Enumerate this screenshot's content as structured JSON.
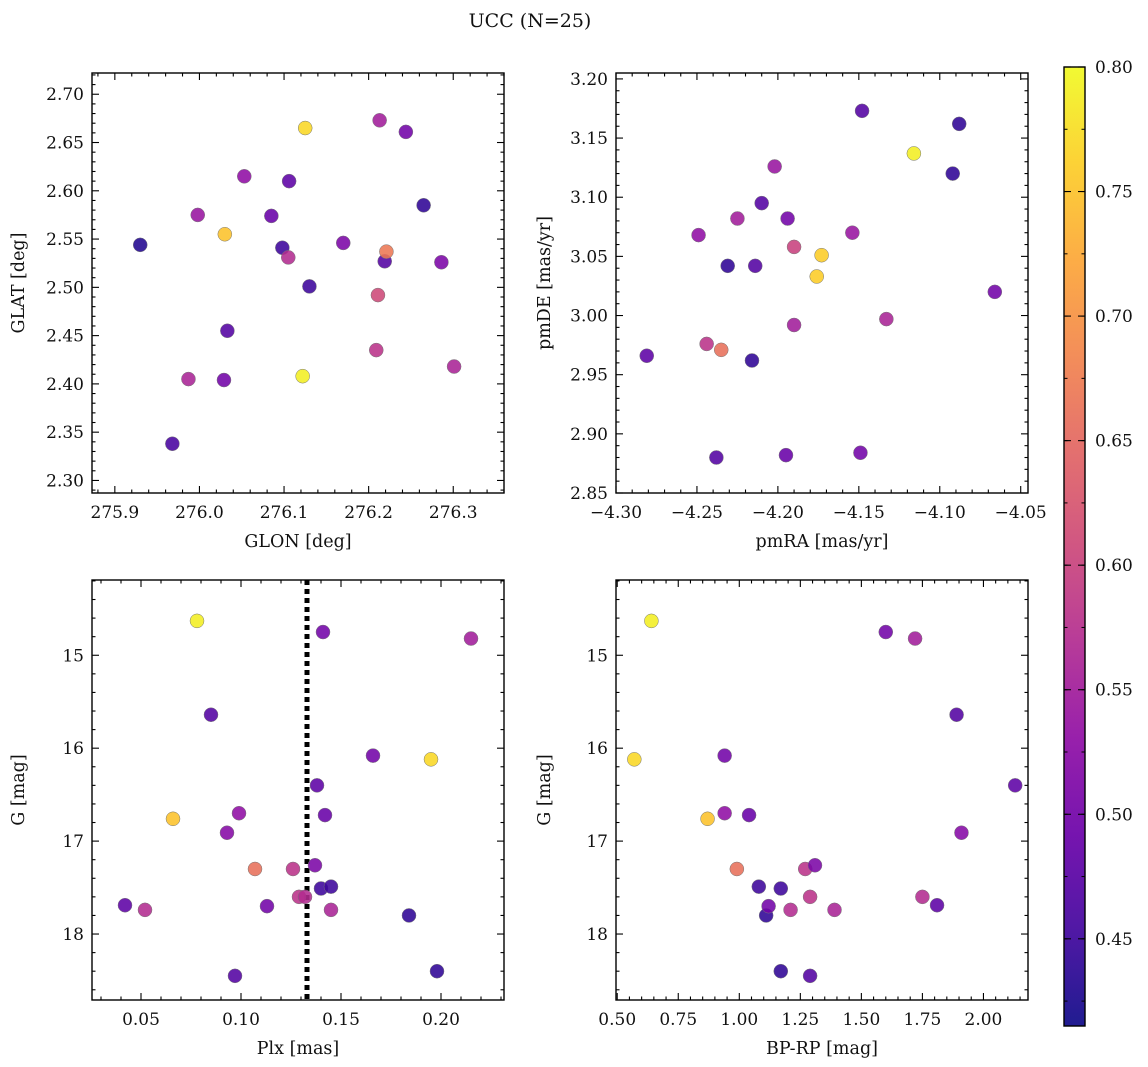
{
  "title": "UCC (N=25)",
  "colorbar": {
    "cmap": "plasma",
    "range": [
      0.415,
      0.8
    ],
    "ticks": [
      "0.45",
      "0.50",
      "0.55",
      "0.60",
      "0.65",
      "0.70",
      "0.75",
      "0.80"
    ],
    "tick_values": [
      0.45,
      0.5,
      0.55,
      0.6,
      0.65,
      0.7,
      0.75,
      0.8
    ]
  },
  "chart_data": [
    {
      "type": "scatter",
      "xlabel": "GLON [deg]",
      "ylabel": "GLAT [deg]",
      "xlim": [
        275.873,
        276.36
      ],
      "ylim": [
        2.287,
        2.722
      ],
      "y_inverted": false,
      "xticks": [
        275.9,
        276.0,
        276.1,
        276.2,
        276.3
      ],
      "xtick_labels": [
        "275.9",
        "276.0",
        "276.1",
        "276.2",
        "276.3"
      ],
      "yticks": [
        2.3,
        2.35,
        2.4,
        2.45,
        2.5,
        2.55,
        2.6,
        2.65,
        2.7
      ],
      "ytick_labels": [
        "2.30",
        "2.35",
        "2.40",
        "2.45",
        "2.50",
        "2.55",
        "2.60",
        "2.65",
        "2.70"
      ],
      "points": [
        {
          "x": 275.93,
          "y": 2.544,
          "c": 0.43
        },
        {
          "x": 275.968,
          "y": 2.338,
          "c": 0.46
        },
        {
          "x": 275.987,
          "y": 2.405,
          "c": 0.56
        },
        {
          "x": 275.998,
          "y": 2.575,
          "c": 0.54
        },
        {
          "x": 276.029,
          "y": 2.404,
          "c": 0.5
        },
        {
          "x": 276.03,
          "y": 2.555,
          "c": 0.75
        },
        {
          "x": 276.033,
          "y": 2.455,
          "c": 0.47
        },
        {
          "x": 276.053,
          "y": 2.615,
          "c": 0.53
        },
        {
          "x": 276.085,
          "y": 2.574,
          "c": 0.49
        },
        {
          "x": 276.098,
          "y": 2.541,
          "c": 0.45
        },
        {
          "x": 276.105,
          "y": 2.531,
          "c": 0.57
        },
        {
          "x": 276.106,
          "y": 2.61,
          "c": 0.48
        },
        {
          "x": 276.122,
          "y": 2.408,
          "c": 0.79
        },
        {
          "x": 276.125,
          "y": 2.665,
          "c": 0.77
        },
        {
          "x": 276.13,
          "y": 2.501,
          "c": 0.45
        },
        {
          "x": 276.17,
          "y": 2.546,
          "c": 0.51
        },
        {
          "x": 276.209,
          "y": 2.435,
          "c": 0.58
        },
        {
          "x": 276.211,
          "y": 2.492,
          "c": 0.61
        },
        {
          "x": 276.213,
          "y": 2.673,
          "c": 0.55
        },
        {
          "x": 276.219,
          "y": 2.527,
          "c": 0.47
        },
        {
          "x": 276.221,
          "y": 2.537,
          "c": 0.67
        },
        {
          "x": 276.244,
          "y": 2.661,
          "c": 0.5
        },
        {
          "x": 276.265,
          "y": 2.585,
          "c": 0.44
        },
        {
          "x": 276.286,
          "y": 2.526,
          "c": 0.51
        },
        {
          "x": 276.301,
          "y": 2.418,
          "c": 0.56
        }
      ]
    },
    {
      "type": "scatter",
      "xlabel": "pmRA [mas/yr]",
      "ylabel": "pmDE [mas/yr]",
      "xlim": [
        -4.3,
        -4.0455
      ],
      "ylim": [
        2.85,
        3.205
      ],
      "y_inverted": false,
      "xticks": [
        -4.3,
        -4.25,
        -4.2,
        -4.15,
        -4.1,
        -4.05
      ],
      "xtick_labels": [
        "−4.30",
        "−4.25",
        "−4.20",
        "−4.15",
        "−4.10",
        "−4.05"
      ],
      "yticks": [
        2.85,
        2.9,
        2.95,
        3.0,
        3.05,
        3.1,
        3.15,
        3.2
      ],
      "ytick_labels": [
        "2.85",
        "2.90",
        "2.95",
        "3.00",
        "3.05",
        "3.10",
        "3.15",
        "3.20"
      ],
      "points": [
        {
          "x": -4.281,
          "y": 2.966,
          "c": 0.48
        },
        {
          "x": -4.249,
          "y": 3.068,
          "c": 0.53
        },
        {
          "x": -4.244,
          "y": 2.976,
          "c": 0.58
        },
        {
          "x": -4.238,
          "y": 2.88,
          "c": 0.47
        },
        {
          "x": -4.235,
          "y": 2.971,
          "c": 0.66
        },
        {
          "x": -4.231,
          "y": 3.042,
          "c": 0.44
        },
        {
          "x": -4.225,
          "y": 3.082,
          "c": 0.55
        },
        {
          "x": -4.216,
          "y": 2.962,
          "c": 0.44
        },
        {
          "x": -4.214,
          "y": 3.042,
          "c": 0.47
        },
        {
          "x": -4.21,
          "y": 3.095,
          "c": 0.47
        },
        {
          "x": -4.202,
          "y": 3.126,
          "c": 0.54
        },
        {
          "x": -4.195,
          "y": 2.882,
          "c": 0.49
        },
        {
          "x": -4.194,
          "y": 3.082,
          "c": 0.5
        },
        {
          "x": -4.19,
          "y": 2.992,
          "c": 0.55
        },
        {
          "x": -4.19,
          "y": 3.058,
          "c": 0.6
        },
        {
          "x": -4.176,
          "y": 3.033,
          "c": 0.76
        },
        {
          "x": -4.173,
          "y": 3.051,
          "c": 0.76
        },
        {
          "x": -4.154,
          "y": 3.07,
          "c": 0.54
        },
        {
          "x": -4.149,
          "y": 2.884,
          "c": 0.5
        },
        {
          "x": -4.148,
          "y": 3.173,
          "c": 0.47
        },
        {
          "x": -4.133,
          "y": 2.997,
          "c": 0.56
        },
        {
          "x": -4.116,
          "y": 3.137,
          "c": 0.79
        },
        {
          "x": -4.092,
          "y": 3.12,
          "c": 0.44
        },
        {
          "x": -4.088,
          "y": 3.162,
          "c": 0.44
        },
        {
          "x": -4.066,
          "y": 3.02,
          "c": 0.5
        }
      ]
    },
    {
      "type": "scatter",
      "xlabel": "Plx [mas]",
      "ylabel": "G [mag]",
      "xlim": [
        0.0255,
        0.2315
      ],
      "ylim": [
        14.19,
        18.71
      ],
      "y_inverted": true,
      "vline": {
        "x": 0.133,
        "style": "dotted"
      },
      "xticks": [
        0.05,
        0.1,
        0.15,
        0.2
      ],
      "xtick_labels": [
        "0.05",
        "0.10",
        "0.15",
        "0.20"
      ],
      "yticks": [
        15,
        16,
        17,
        18
      ],
      "ytick_labels": [
        "15",
        "16",
        "17",
        "18"
      ],
      "points": [
        {
          "x": 0.042,
          "y": 17.69,
          "c": 0.48
        },
        {
          "x": 0.052,
          "y": 17.74,
          "c": 0.57
        },
        {
          "x": 0.066,
          "y": 16.76,
          "c": 0.75
        },
        {
          "x": 0.078,
          "y": 14.63,
          "c": 0.79
        },
        {
          "x": 0.085,
          "y": 15.64,
          "c": 0.47
        },
        {
          "x": 0.093,
          "y": 16.91,
          "c": 0.52
        },
        {
          "x": 0.097,
          "y": 18.45,
          "c": 0.47
        },
        {
          "x": 0.099,
          "y": 16.7,
          "c": 0.53
        },
        {
          "x": 0.107,
          "y": 17.3,
          "c": 0.66
        },
        {
          "x": 0.113,
          "y": 17.7,
          "c": 0.5
        },
        {
          "x": 0.126,
          "y": 17.3,
          "c": 0.58
        },
        {
          "x": 0.129,
          "y": 17.6,
          "c": 0.58
        },
        {
          "x": 0.132,
          "y": 17.6,
          "c": 0.57
        },
        {
          "x": 0.137,
          "y": 17.26,
          "c": 0.51
        },
        {
          "x": 0.138,
          "y": 16.4,
          "c": 0.48
        },
        {
          "x": 0.14,
          "y": 17.51,
          "c": 0.45
        },
        {
          "x": 0.141,
          "y": 14.75,
          "c": 0.5
        },
        {
          "x": 0.142,
          "y": 16.72,
          "c": 0.49
        },
        {
          "x": 0.145,
          "y": 17.74,
          "c": 0.56
        },
        {
          "x": 0.145,
          "y": 17.49,
          "c": 0.45
        },
        {
          "x": 0.166,
          "y": 16.08,
          "c": 0.5
        },
        {
          "x": 0.184,
          "y": 17.8,
          "c": 0.44
        },
        {
          "x": 0.195,
          "y": 16.12,
          "c": 0.77
        },
        {
          "x": 0.198,
          "y": 18.4,
          "c": 0.44
        },
        {
          "x": 0.215,
          "y": 14.82,
          "c": 0.55
        }
      ]
    },
    {
      "type": "scatter",
      "xlabel": "BP-RP [mag]",
      "ylabel": "G [mag]",
      "xlim": [
        0.495,
        2.1825
      ],
      "ylim": [
        14.19,
        18.71
      ],
      "y_inverted": true,
      "xticks": [
        0.5,
        0.75,
        1.0,
        1.25,
        1.5,
        1.75,
        2.0
      ],
      "xtick_labels": [
        "0.50",
        "0.75",
        "1.00",
        "1.25",
        "1.50",
        "1.75",
        "2.00"
      ],
      "yticks": [
        15,
        16,
        17,
        18
      ],
      "ytick_labels": [
        "15",
        "16",
        "17",
        "18"
      ],
      "points": [
        {
          "x": 0.64,
          "y": 14.63,
          "c": 0.79
        },
        {
          "x": 0.57,
          "y": 16.12,
          "c": 0.77
        },
        {
          "x": 0.87,
          "y": 16.76,
          "c": 0.75
        },
        {
          "x": 0.94,
          "y": 16.08,
          "c": 0.5
        },
        {
          "x": 0.94,
          "y": 16.7,
          "c": 0.53
        },
        {
          "x": 0.99,
          "y": 17.3,
          "c": 0.66
        },
        {
          "x": 1.04,
          "y": 16.72,
          "c": 0.49
        },
        {
          "x": 1.08,
          "y": 17.49,
          "c": 0.45
        },
        {
          "x": 1.11,
          "y": 17.8,
          "c": 0.44
        },
        {
          "x": 1.12,
          "y": 17.7,
          "c": 0.5
        },
        {
          "x": 1.17,
          "y": 17.51,
          "c": 0.45
        },
        {
          "x": 1.17,
          "y": 18.4,
          "c": 0.44
        },
        {
          "x": 1.21,
          "y": 17.74,
          "c": 0.57
        },
        {
          "x": 1.27,
          "y": 17.3,
          "c": 0.58
        },
        {
          "x": 1.29,
          "y": 17.6,
          "c": 0.58
        },
        {
          "x": 1.29,
          "y": 18.45,
          "c": 0.47
        },
        {
          "x": 1.31,
          "y": 17.26,
          "c": 0.51
        },
        {
          "x": 1.39,
          "y": 17.74,
          "c": 0.56
        },
        {
          "x": 1.6,
          "y": 14.75,
          "c": 0.5
        },
        {
          "x": 1.72,
          "y": 14.82,
          "c": 0.55
        },
        {
          "x": 1.75,
          "y": 17.6,
          "c": 0.57
        },
        {
          "x": 1.81,
          "y": 17.69,
          "c": 0.48
        },
        {
          "x": 1.89,
          "y": 15.64,
          "c": 0.47
        },
        {
          "x": 1.91,
          "y": 16.91,
          "c": 0.52
        },
        {
          "x": 2.13,
          "y": 16.4,
          "c": 0.48
        }
      ]
    }
  ]
}
